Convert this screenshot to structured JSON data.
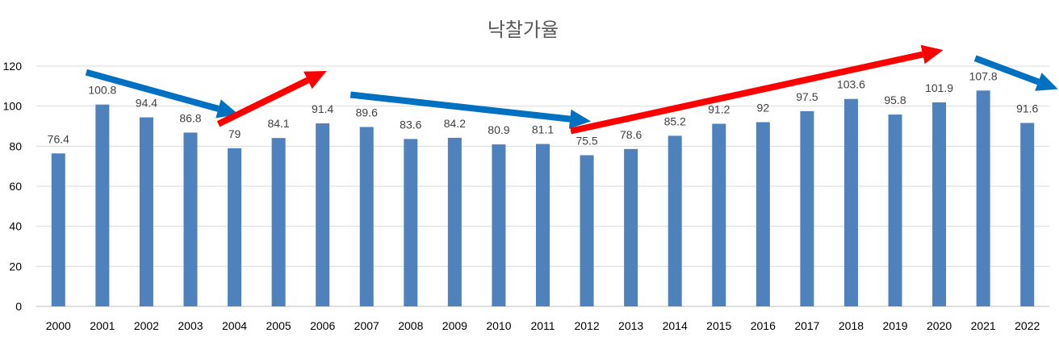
{
  "chart_data": {
    "type": "bar",
    "title": "낙찰가율",
    "xlabel": "",
    "ylabel": "",
    "ylim": [
      0,
      120
    ],
    "yticks": [
      0,
      20,
      40,
      60,
      80,
      100,
      120
    ],
    "grid": true,
    "legend": "none",
    "categories": [
      "2000",
      "2001",
      "2002",
      "2003",
      "2004",
      "2005",
      "2006",
      "2007",
      "2008",
      "2009",
      "2010",
      "2011",
      "2012",
      "2013",
      "2014",
      "2015",
      "2016",
      "2017",
      "2018",
      "2019",
      "2020",
      "2021",
      "2022"
    ],
    "series": [
      {
        "values": [
          76.4,
          100.8,
          94.4,
          86.8,
          79,
          84.1,
          91.4,
          89.6,
          83.6,
          84.2,
          80.9,
          81.1,
          75.5,
          78.6,
          85.2,
          91.2,
          92,
          97.5,
          103.6,
          95.8,
          101.9,
          107.8,
          91.6
        ],
        "data_labels": [
          "76.4",
          "100.8",
          "94.4",
          "86.8",
          "79",
          "84.1",
          "91.4",
          "89.6",
          "83.6",
          "84.2",
          "80.9",
          "81.1",
          "75.5",
          "78.6",
          "85.2",
          "91.2",
          "92",
          "97.5",
          "103.6",
          "95.8",
          "101.9",
          "107.8",
          "91.6"
        ],
        "color": "#4F81BD"
      }
    ],
    "annotations": [
      {
        "type": "arrow",
        "color": "#0070C0",
        "from_category": "2001",
        "to_category": "2004",
        "trend": "down"
      },
      {
        "type": "arrow",
        "color": "#FF0000",
        "from_category": "2004",
        "to_category": "2006",
        "trend": "up"
      },
      {
        "type": "arrow",
        "color": "#0070C0",
        "from_category": "2007",
        "to_category": "2012",
        "trend": "down"
      },
      {
        "type": "arrow",
        "color": "#FF0000",
        "from_category": "2012",
        "to_category": "2020",
        "trend": "up"
      },
      {
        "type": "arrow",
        "color": "#0070C0",
        "from_category": "2021",
        "to_category": "2022",
        "trend": "down"
      }
    ],
    "colors": {
      "bar": "#4F81BD",
      "grid": "#D9D9D9",
      "axis": "#BFBFBF",
      "arrow_blue": "#0070C0",
      "arrow_red": "#FF0000"
    }
  }
}
